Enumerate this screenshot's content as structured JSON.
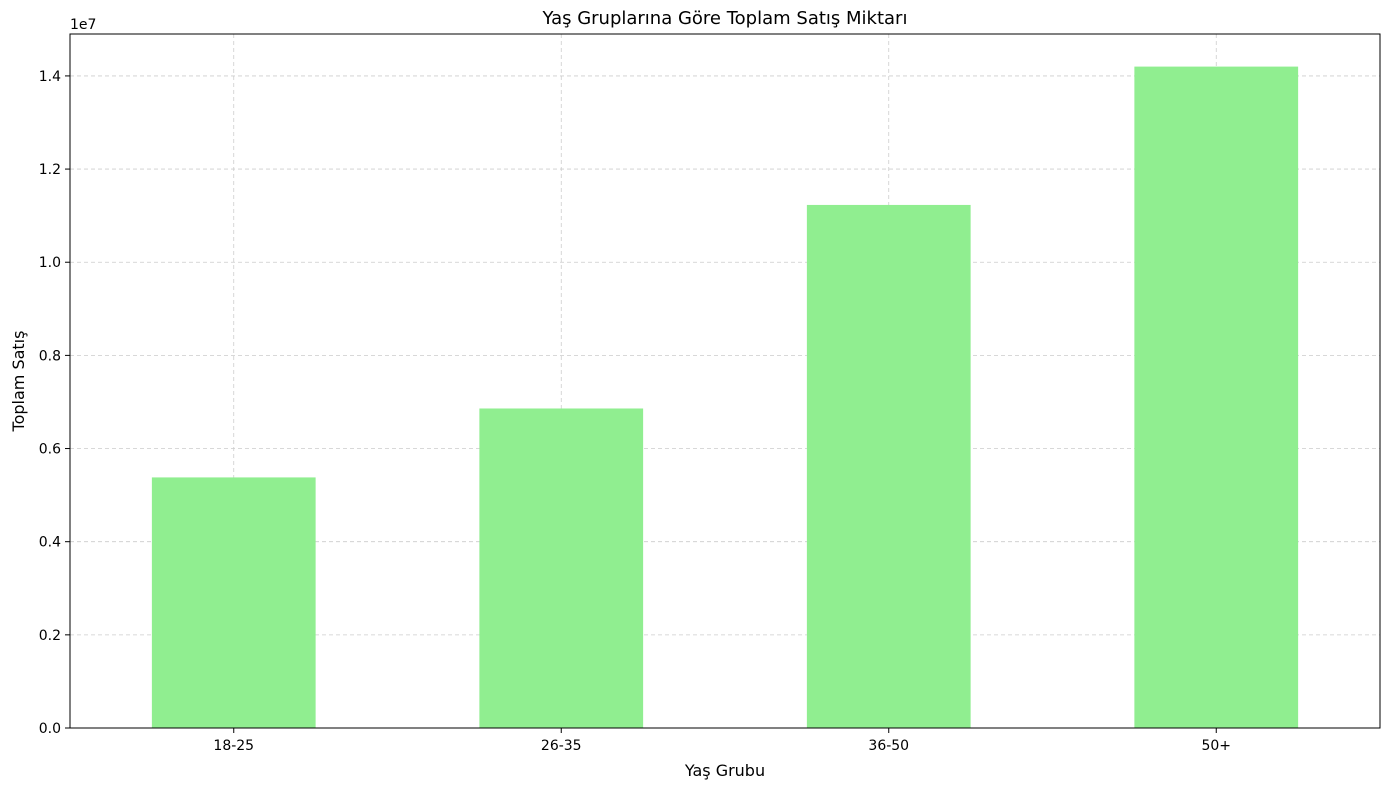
{
  "chart_data": {
    "type": "bar",
    "title": "Yaş Gruplarına Göre Toplam Satış Miktarı",
    "xlabel": "Yaş Grubu",
    "ylabel": "Toplam Satış",
    "y_offset_label": "1e7",
    "categories": [
      "18-25",
      "26-35",
      "36-50",
      "50+"
    ],
    "values": [
      5380000,
      6860000,
      11230000,
      14200000
    ],
    "ylim": [
      0,
      14900000
    ],
    "y_ticks": [
      0,
      2000000,
      4000000,
      6000000,
      8000000,
      10000000,
      12000000,
      14000000
    ],
    "y_tick_labels": [
      "0.0",
      "0.2",
      "0.4",
      "0.6",
      "0.8",
      "1.0",
      "1.2",
      "1.4"
    ],
    "grid": true,
    "bar_color": "#90ee90"
  }
}
